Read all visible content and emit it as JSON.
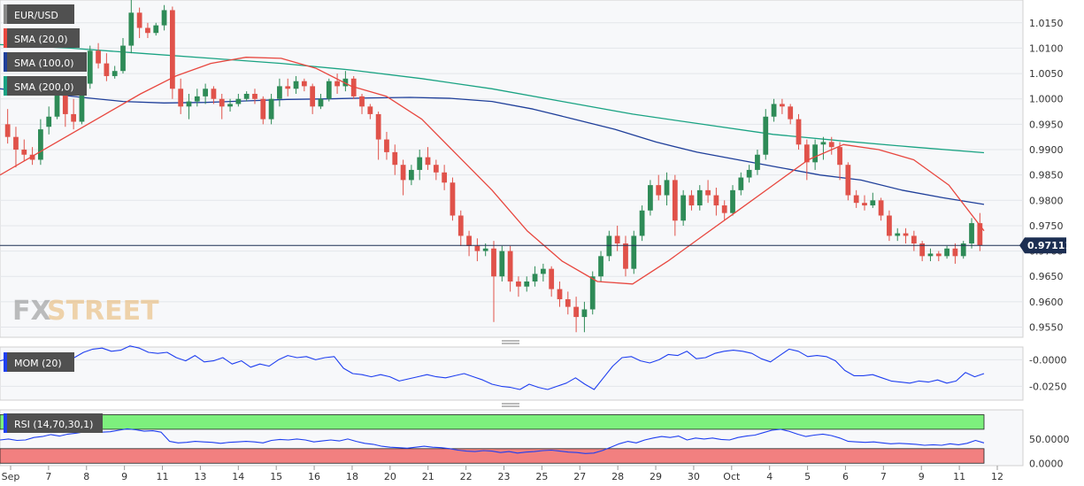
{
  "colors": {
    "bull": "#2e8b57",
    "bear": "#e0524a",
    "sma20": "#e8473f",
    "sma100": "#1f3f9a",
    "sma200": "#1aa383",
    "mom": "#1f3ff0",
    "rsi": "#1f3ff0",
    "ob": "#7df07d",
    "os": "#f28080",
    "tag_bg": "#505050",
    "last_price": "#1c2e52"
  },
  "chart_data": [
    {
      "type": "candlestick",
      "title": "",
      "symbol": "EUR/USD",
      "ylim": [
        0.953,
        1.0195
      ],
      "yticks": [
        "1.0150",
        "1.0100",
        "1.0050",
        "1.0000",
        "0.9950",
        "0.9900",
        "0.9850",
        "0.9800",
        "0.9750",
        "0.9700",
        "0.9650",
        "0.9600",
        "0.9550"
      ],
      "last_price": "0.97111",
      "last_price_value": 0.97111,
      "x_labels": [
        "Sep",
        "7",
        "8",
        "9",
        "11",
        "13",
        "14",
        "15",
        "16",
        "18",
        "20",
        "21",
        "22",
        "23",
        "25",
        "27",
        "28",
        "29",
        "30",
        "Oct",
        "4",
        "5",
        "6",
        "7",
        "9",
        "11",
        "12"
      ],
      "candles": [
        [
          0.995,
          0.998,
          0.9912,
          0.9925
        ],
        [
          0.9925,
          0.9945,
          0.9865,
          0.99
        ],
        [
          0.99,
          0.992,
          0.9878,
          0.989
        ],
        [
          0.989,
          0.9905,
          0.987,
          0.988
        ],
        [
          0.988,
          0.996,
          0.987,
          0.994
        ],
        [
          0.9945,
          0.9985,
          0.993,
          0.9965
        ],
        [
          0.9965,
          1.003,
          0.996,
          1.001
        ],
        [
          1.001,
          1.0045,
          0.9945,
          0.997
        ],
        [
          0.997,
          1.0,
          0.994,
          0.9955
        ],
        [
          0.9955,
          1.004,
          0.995,
          1.003
        ],
        [
          1.003,
          1.0105,
          1.002,
          1.0095
        ],
        [
          1.0095,
          1.011,
          1.006,
          1.007
        ],
        [
          1.007,
          1.009,
          1.0035,
          1.0045
        ],
        [
          1.0045,
          1.0065,
          1.004,
          1.0055
        ],
        [
          1.0055,
          1.012,
          1.005,
          1.0105
        ],
        [
          1.0105,
          1.0195,
          1.009,
          1.017
        ],
        [
          1.017,
          1.018,
          1.012,
          1.014
        ],
        [
          1.014,
          1.015,
          1.012,
          1.013
        ],
        [
          1.013,
          1.015,
          1.0125,
          1.0145
        ],
        [
          1.0145,
          1.0185,
          1.0135,
          1.0175
        ],
        [
          1.0175,
          1.0182,
          1.0,
          1.002
        ],
        [
          1.002,
          1.004,
          0.997,
          0.9985
        ],
        [
          0.9985,
          1.001,
          0.996,
          0.9995
        ],
        [
          0.9995,
          1.002,
          0.9985,
          1.0005
        ],
        [
          1.0005,
          1.003,
          0.999,
          1.002
        ],
        [
          1.002,
          1.0025,
          0.999,
          1.0
        ],
        [
          1.0,
          1.001,
          0.996,
          0.9985
        ],
        [
          0.9985,
          1.0,
          0.9975,
          0.999
        ],
        [
          0.999,
          1.001,
          0.9985,
          1.0
        ],
        [
          1.0,
          1.0015,
          0.9995,
          1.001
        ],
        [
          1.001,
          1.002,
          0.999,
          1.0
        ],
        [
          1.0,
          1.0005,
          0.995,
          0.996
        ],
        [
          0.996,
          1.001,
          0.995,
          1.0
        ],
        [
          1.0,
          1.004,
          0.9985,
          1.0025
        ],
        [
          1.0025,
          1.004,
          1.0005,
          1.002
        ],
        [
          1.002,
          1.0045,
          1.001,
          1.0035
        ],
        [
          1.0035,
          1.004,
          1.0015,
          1.0025
        ],
        [
          1.0025,
          1.003,
          0.997,
          0.9985
        ],
        [
          0.9985,
          1.001,
          0.998,
          1.0
        ],
        [
          1.0,
          1.004,
          0.9995,
          1.0035
        ],
        [
          1.0035,
          1.005,
          1.001,
          1.0025
        ],
        [
          1.0025,
          1.0055,
          1.0015,
          1.004
        ],
        [
          1.004,
          1.0045,
          1.0,
          1.0005
        ],
        [
          1.0005,
          1.001,
          0.997,
          0.9985
        ],
        [
          0.9985,
          0.999,
          0.996,
          0.997
        ],
        [
          0.997,
          0.9975,
          0.988,
          0.992
        ],
        [
          0.992,
          0.9935,
          0.988,
          0.9895
        ],
        [
          0.9895,
          0.991,
          0.985,
          0.987
        ],
        [
          0.987,
          0.988,
          0.981,
          0.984
        ],
        [
          0.984,
          0.987,
          0.983,
          0.986
        ],
        [
          0.986,
          0.99,
          0.984,
          0.9885
        ],
        [
          0.9885,
          0.9905,
          0.986,
          0.987
        ],
        [
          0.987,
          0.988,
          0.984,
          0.9855
        ],
        [
          0.9855,
          0.987,
          0.982,
          0.9835
        ],
        [
          0.9835,
          0.9845,
          0.976,
          0.977
        ],
        [
          0.977,
          0.978,
          0.971,
          0.973
        ],
        [
          0.973,
          0.974,
          0.969,
          0.971
        ],
        [
          0.971,
          0.9725,
          0.968,
          0.97
        ],
        [
          0.97,
          0.9715,
          0.969,
          0.9705
        ],
        [
          0.9705,
          0.972,
          0.956,
          0.965
        ],
        [
          0.965,
          0.971,
          0.964,
          0.97
        ],
        [
          0.97,
          0.971,
          0.962,
          0.964
        ],
        [
          0.964,
          0.965,
          0.961,
          0.963
        ],
        [
          0.963,
          0.965,
          0.962,
          0.964
        ],
        [
          0.964,
          0.967,
          0.963,
          0.9655
        ],
        [
          0.9655,
          0.9675,
          0.964,
          0.9665
        ],
        [
          0.9665,
          0.967,
          0.961,
          0.9625
        ],
        [
          0.9625,
          0.964,
          0.959,
          0.9605
        ],
        [
          0.9605,
          0.962,
          0.9575,
          0.959
        ],
        [
          0.959,
          0.961,
          0.954,
          0.957
        ],
        [
          0.957,
          0.96,
          0.954,
          0.9585
        ],
        [
          0.9585,
          0.966,
          0.9575,
          0.965
        ],
        [
          0.965,
          0.97,
          0.964,
          0.969
        ],
        [
          0.969,
          0.974,
          0.968,
          0.973
        ],
        [
          0.973,
          0.975,
          0.97,
          0.9715
        ],
        [
          0.9715,
          0.973,
          0.965,
          0.9665
        ],
        [
          0.9665,
          0.974,
          0.9655,
          0.973
        ],
        [
          0.973,
          0.979,
          0.972,
          0.978
        ],
        [
          0.978,
          0.984,
          0.977,
          0.983
        ],
        [
          0.983,
          0.985,
          0.98,
          0.981
        ],
        [
          0.981,
          0.9855,
          0.979,
          0.984
        ],
        [
          0.984,
          0.985,
          0.973,
          0.976
        ],
        [
          0.976,
          0.982,
          0.975,
          0.981
        ],
        [
          0.981,
          0.982,
          0.978,
          0.979
        ],
        [
          0.979,
          0.983,
          0.978,
          0.982
        ],
        [
          0.982,
          0.984,
          0.9795,
          0.981
        ],
        [
          0.981,
          0.9825,
          0.977,
          0.979
        ],
        [
          0.979,
          0.98,
          0.976,
          0.9775
        ],
        [
          0.9775,
          0.983,
          0.977,
          0.982
        ],
        [
          0.982,
          0.9855,
          0.981,
          0.9845
        ],
        [
          0.9845,
          0.987,
          0.9835,
          0.986
        ],
        [
          0.986,
          0.99,
          0.985,
          0.989
        ],
        [
          0.989,
          0.998,
          0.988,
          0.9965
        ],
        [
          0.9965,
          1.0,
          0.9955,
          0.999
        ],
        [
          0.999,
          1.0,
          0.997,
          0.9985
        ],
        [
          0.9985,
          0.999,
          0.995,
          0.996
        ],
        [
          0.996,
          0.997,
          0.99,
          0.991
        ],
        [
          0.991,
          0.992,
          0.984,
          0.9875
        ],
        [
          0.9875,
          0.992,
          0.986,
          0.991
        ],
        [
          0.991,
          0.9925,
          0.988,
          0.9915
        ],
        [
          0.9915,
          0.9925,
          0.989,
          0.9905
        ],
        [
          0.9905,
          0.9915,
          0.984,
          0.987
        ],
        [
          0.987,
          0.9875,
          0.98,
          0.981
        ],
        [
          0.981,
          0.982,
          0.9785,
          0.9795
        ],
        [
          0.9795,
          0.981,
          0.978,
          0.979
        ],
        [
          0.979,
          0.9815,
          0.9785,
          0.98
        ],
        [
          0.98,
          0.9805,
          0.976,
          0.977
        ],
        [
          0.977,
          0.978,
          0.972,
          0.973
        ],
        [
          0.973,
          0.9745,
          0.972,
          0.9735
        ],
        [
          0.9735,
          0.9745,
          0.9715,
          0.973
        ],
        [
          0.973,
          0.974,
          0.97,
          0.9715
        ],
        [
          0.9715,
          0.972,
          0.968,
          0.969
        ],
        [
          0.969,
          0.9705,
          0.968,
          0.9695
        ],
        [
          0.9695,
          0.97,
          0.968,
          0.969
        ],
        [
          0.969,
          0.971,
          0.9685,
          0.9705
        ],
        [
          0.9705,
          0.9715,
          0.9675,
          0.969
        ],
        [
          0.969,
          0.972,
          0.9685,
          0.9715
        ],
        [
          0.9715,
          0.9765,
          0.9705,
          0.9755
        ],
        [
          0.9755,
          0.9775,
          0.97,
          0.9711
        ]
      ],
      "series": [
        {
          "name": "SMA (20,0)",
          "values": [
            0.985,
            0.989,
            0.993,
            0.997,
            1.001,
            1.0045,
            1.007,
            1.0082,
            1.008,
            1.006,
            1.0025,
            1.0005,
            0.996,
            0.989,
            0.982,
            0.974,
            0.968,
            0.964,
            0.9635,
            0.968,
            0.973,
            0.978,
            0.983,
            0.988,
            0.991,
            0.99,
            0.988,
            0.983,
            0.974
          ]
        },
        {
          "name": "SMA (100,0)",
          "values": [
            1.002,
            1.0012,
            1.0003,
            0.9995,
            0.9992,
            0.9993,
            0.9996,
            0.9999,
            1.0,
            1.0002,
            1.0003,
            1.0001,
            0.9995,
            0.998,
            0.996,
            0.994,
            0.9915,
            0.9895,
            0.988,
            0.9865,
            0.985,
            0.984,
            0.982,
            0.9805,
            0.9792
          ]
        },
        {
          "name": "SMA (200,0)",
          "values": [
            1.0107,
            1.01,
            1.009,
            1.008,
            1.007,
            1.0057,
            1.004,
            1.002,
            0.9995,
            0.997,
            0.995,
            0.993,
            0.9917,
            0.9905,
            0.9894
          ]
        }
      ]
    },
    {
      "type": "line",
      "title": "",
      "series_label": "MOM (20)",
      "ylim": [
        -0.038,
        0.012
      ],
      "yticks": [
        "-0.0000",
        "-0.0250"
      ],
      "series": [
        {
          "name": "MOM (20)",
          "values": [
            -0.001,
            0.001,
            0.0,
            -0.002,
            0.001,
            0.003,
            0.001,
            0.005,
            0.002,
            0.007,
            0.01,
            0.011,
            0.008,
            0.009,
            0.013,
            0.011,
            0.007,
            0.006,
            0.007,
            0.002,
            -0.001,
            0.004,
            -0.002,
            -0.001,
            0.002,
            -0.004,
            -0.001,
            -0.007,
            -0.004,
            -0.006,
            0.0,
            0.004,
            0.002,
            0.003,
            0.0,
            0.002,
            0.003,
            -0.008,
            -0.013,
            -0.014,
            -0.016,
            -0.014,
            -0.016,
            -0.02,
            -0.018,
            -0.016,
            -0.014,
            -0.016,
            -0.017,
            -0.015,
            -0.013,
            -0.016,
            -0.019,
            -0.023,
            -0.025,
            -0.026,
            -0.028,
            -0.023,
            -0.026,
            -0.028,
            -0.025,
            -0.022,
            -0.017,
            -0.023,
            -0.028,
            -0.017,
            -0.006,
            0.002,
            0.003,
            -0.001,
            -0.003,
            0.0,
            0.005,
            0.004,
            0.008,
            0.001,
            0.002,
            0.006,
            0.008,
            0.009,
            0.008,
            0.006,
            0.001,
            -0.002,
            0.004,
            0.01,
            0.008,
            0.003,
            0.004,
            0.003,
            -0.001,
            -0.01,
            -0.015,
            -0.015,
            -0.014,
            -0.017,
            -0.02,
            -0.021,
            -0.022,
            -0.02,
            -0.021,
            -0.019,
            -0.022,
            -0.02,
            -0.012,
            -0.016,
            -0.013
          ]
        }
      ]
    },
    {
      "type": "line",
      "title": "",
      "series_label": "RSI (14,70,30,1)",
      "ylim": [
        -5,
        110
      ],
      "yticks": [
        "50.0000",
        "0.0000"
      ],
      "overbought": 70,
      "oversold": 30,
      "series": [
        {
          "name": "RSI (14,70,30,1)",
          "values": [
            48,
            50,
            47,
            48,
            53,
            55,
            59,
            56,
            60,
            62,
            65,
            66,
            64,
            65,
            68,
            71,
            69,
            66,
            67,
            64,
            45,
            42,
            43,
            45,
            44,
            43,
            41,
            43,
            44,
            45,
            44,
            42,
            47,
            49,
            48,
            50,
            48,
            44,
            46,
            48,
            46,
            50,
            45,
            41,
            39,
            35,
            33,
            32,
            31,
            33,
            35,
            33,
            32,
            30,
            27,
            25,
            24,
            26,
            25,
            22,
            24,
            21,
            23,
            24,
            26,
            27,
            25,
            23,
            22,
            20,
            21,
            26,
            33,
            40,
            45,
            42,
            48,
            52,
            55,
            53,
            56,
            48,
            52,
            50,
            52,
            49,
            48,
            53,
            56,
            58,
            63,
            68,
            70,
            66,
            60,
            55,
            58,
            60,
            57,
            52,
            45,
            44,
            43,
            44,
            42,
            40,
            41,
            40,
            39,
            37,
            38,
            37,
            40,
            38,
            41,
            47,
            42
          ]
        }
      ]
    }
  ]
}
